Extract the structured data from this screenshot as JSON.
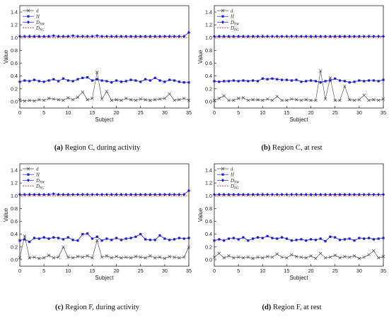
{
  "axis": {
    "ylabel": "Value",
    "xlabel": "Subject",
    "xticks": [
      "0",
      "5",
      "10",
      "15",
      "20",
      "25",
      "30",
      "35"
    ],
    "yticks": [
      "0.0",
      "0.2",
      "0.4",
      "0.6",
      "0.8",
      "1.0",
      "1.2",
      "1.4"
    ]
  },
  "legend": [
    {
      "label": "d",
      "color": "#444444",
      "marker": "x"
    },
    {
      "label": "H",
      "color": "#1a1adc",
      "marker": "square"
    },
    {
      "label": "D_NW",
      "sub": "NW",
      "color": "#1a1adc",
      "marker": "diamond"
    },
    {
      "label": "D_NG",
      "sub": "NG",
      "color": "#e8302e",
      "marker": "dash"
    }
  ],
  "colors": {
    "d": "#444444",
    "H": "#1a1adc",
    "D_NW": "#1a1adc",
    "D_NG": "#e8302e"
  },
  "chart_data": [
    {
      "type": "line",
      "caption_id": "(a)",
      "caption_text": "Region C, during activity",
      "xlabel": "Subject",
      "ylabel": "Value",
      "xlim": [
        0,
        35
      ],
      "ylim": [
        -0.1,
        1.5
      ],
      "x": [
        0,
        1,
        2,
        3,
        4,
        5,
        6,
        7,
        8,
        9,
        10,
        11,
        12,
        13,
        14,
        15,
        16,
        17,
        18,
        19,
        20,
        21,
        22,
        23,
        24,
        25,
        26,
        27,
        28,
        29,
        30,
        31,
        32,
        33,
        34,
        35
      ],
      "series": [
        {
          "name": "d",
          "values": [
            0.03,
            0.01,
            0.02,
            0.01,
            0.03,
            0.02,
            0.05,
            0.04,
            0.03,
            0.02,
            0.06,
            0.03,
            0.07,
            0.15,
            0.03,
            0.05,
            0.46,
            0.04,
            0.16,
            0.02,
            0.03,
            0.02,
            0.05,
            0.03,
            0.02,
            0.04,
            0.03,
            0.02,
            0.03,
            0.04,
            0.05,
            0.12,
            0.02,
            0.03,
            0.05,
            0.02
          ]
        },
        {
          "name": "H",
          "values": [
            0.31,
            0.33,
            0.32,
            0.34,
            0.32,
            0.31,
            0.33,
            0.35,
            0.32,
            0.36,
            0.33,
            0.32,
            0.35,
            0.37,
            0.38,
            0.33,
            0.35,
            0.33,
            0.32,
            0.3,
            0.33,
            0.31,
            0.32,
            0.34,
            0.33,
            0.31,
            0.35,
            0.33,
            0.37,
            0.33,
            0.31,
            0.34,
            0.33,
            0.31,
            0.3,
            0.3
          ]
        },
        {
          "name": "D_NW",
          "values": [
            1.02,
            1.02,
            1.02,
            1.02,
            1.02,
            1.02,
            1.02,
            1.03,
            1.02,
            1.02,
            1.02,
            1.03,
            1.02,
            1.02,
            1.02,
            1.02,
            1.03,
            1.02,
            1.02,
            1.02,
            1.02,
            1.02,
            1.02,
            1.02,
            1.02,
            1.02,
            1.02,
            1.02,
            1.02,
            1.02,
            1.02,
            1.02,
            1.02,
            1.02,
            1.02,
            1.08
          ]
        },
        {
          "name": "D_NG",
          "values": [
            1.0,
            1.0,
            1.0,
            1.0,
            1.0,
            1.0,
            1.0,
            1.0,
            1.0,
            1.0,
            1.0,
            1.0,
            1.0,
            1.0,
            1.0,
            1.0,
            1.0,
            1.0,
            1.0,
            1.0,
            1.0,
            1.0,
            1.0,
            1.0,
            1.0,
            1.0,
            1.0,
            1.0,
            1.0,
            1.0,
            1.0,
            1.0,
            1.0,
            1.0,
            1.0,
            1.0
          ]
        }
      ]
    },
    {
      "type": "line",
      "caption_id": "(b)",
      "caption_text": "Region C, at rest",
      "xlabel": "Subject",
      "ylabel": "Value",
      "xlim": [
        0,
        35
      ],
      "ylim": [
        -0.1,
        1.5
      ],
      "x": [
        0,
        1,
        2,
        3,
        4,
        5,
        6,
        7,
        8,
        9,
        10,
        11,
        12,
        13,
        14,
        15,
        16,
        17,
        18,
        19,
        20,
        21,
        22,
        23,
        24,
        25,
        26,
        27,
        28,
        29,
        30,
        31,
        32,
        33,
        34,
        35
      ],
      "series": [
        {
          "name": "d",
          "values": [
            0.02,
            0.05,
            0.09,
            0.02,
            0.02,
            0.05,
            0.06,
            0.02,
            0.03,
            0.03,
            0.02,
            0.04,
            0.02,
            0.08,
            0.02,
            0.02,
            0.04,
            0.03,
            0.02,
            0.03,
            0.02,
            0.02,
            0.48,
            0.04,
            0.37,
            0.02,
            0.02,
            0.24,
            0.03,
            0.02,
            0.03,
            0.1,
            0.02,
            0.03,
            0.02,
            0.04
          ]
        },
        {
          "name": "H",
          "values": [
            0.32,
            0.31,
            0.32,
            0.32,
            0.33,
            0.32,
            0.33,
            0.32,
            0.33,
            0.32,
            0.36,
            0.35,
            0.36,
            0.35,
            0.34,
            0.34,
            0.33,
            0.34,
            0.31,
            0.32,
            0.33,
            0.32,
            0.3,
            0.32,
            0.33,
            0.36,
            0.33,
            0.32,
            0.3,
            0.31,
            0.33,
            0.32,
            0.33,
            0.33,
            0.32,
            0.34
          ]
        },
        {
          "name": "D_NW",
          "values": [
            1.02,
            1.02,
            1.02,
            1.02,
            1.02,
            1.02,
            1.02,
            1.02,
            1.02,
            1.02,
            1.02,
            1.02,
            1.02,
            1.02,
            1.02,
            1.02,
            1.02,
            1.02,
            1.02,
            1.02,
            1.02,
            1.02,
            1.02,
            1.02,
            1.02,
            1.02,
            1.02,
            1.02,
            1.02,
            1.02,
            1.02,
            1.02,
            1.02,
            1.02,
            1.02,
            1.02
          ]
        },
        {
          "name": "D_NG",
          "values": [
            1.0,
            1.0,
            1.0,
            1.0,
            1.0,
            1.0,
            1.0,
            1.0,
            1.0,
            1.0,
            1.0,
            1.0,
            1.0,
            1.0,
            1.0,
            1.0,
            1.0,
            1.0,
            1.0,
            1.0,
            1.0,
            1.0,
            1.0,
            1.0,
            1.0,
            1.0,
            1.0,
            1.0,
            1.0,
            1.0,
            1.0,
            1.0,
            1.0,
            1.0,
            1.0,
            1.0
          ]
        }
      ]
    },
    {
      "type": "line",
      "caption_id": "(c)",
      "caption_text": "Region F, during activity",
      "xlabel": "Subject",
      "ylabel": "Value",
      "xlim": [
        0,
        35
      ],
      "ylim": [
        -0.1,
        1.5
      ],
      "x": [
        0,
        1,
        2,
        3,
        4,
        5,
        6,
        7,
        8,
        9,
        10,
        11,
        12,
        13,
        14,
        15,
        16,
        17,
        18,
        19,
        20,
        21,
        22,
        23,
        24,
        25,
        26,
        27,
        28,
        29,
        30,
        31,
        32,
        33,
        34,
        35
      ],
      "series": [
        {
          "name": "d",
          "values": [
            0.03,
            0.37,
            0.03,
            0.04,
            0.02,
            0.03,
            0.07,
            0.03,
            0.04,
            0.2,
            0.04,
            0.03,
            0.05,
            0.04,
            0.06,
            0.03,
            0.3,
            0.04,
            0.06,
            0.03,
            0.05,
            0.03,
            0.04,
            0.03,
            0.05,
            0.04,
            0.03,
            0.06,
            0.03,
            0.04,
            0.02,
            0.05,
            0.04,
            0.03,
            0.04,
            0.2
          ]
        },
        {
          "name": "H",
          "values": [
            0.3,
            0.32,
            0.28,
            0.34,
            0.33,
            0.35,
            0.33,
            0.35,
            0.34,
            0.32,
            0.35,
            0.31,
            0.3,
            0.4,
            0.41,
            0.33,
            0.36,
            0.3,
            0.33,
            0.31,
            0.34,
            0.31,
            0.33,
            0.34,
            0.36,
            0.4,
            0.32,
            0.31,
            0.31,
            0.38,
            0.33,
            0.31,
            0.32,
            0.34,
            0.33,
            0.34
          ]
        },
        {
          "name": "D_NW",
          "values": [
            1.02,
            1.02,
            1.02,
            1.02,
            1.02,
            1.02,
            1.02,
            1.03,
            1.02,
            1.02,
            1.02,
            1.02,
            1.02,
            1.02,
            1.02,
            1.02,
            1.02,
            1.02,
            1.02,
            1.02,
            1.02,
            1.02,
            1.02,
            1.02,
            1.02,
            1.02,
            1.02,
            1.02,
            1.02,
            1.02,
            1.02,
            1.02,
            1.02,
            1.02,
            1.02,
            1.08
          ]
        },
        {
          "name": "D_NG",
          "values": [
            1.0,
            1.0,
            1.0,
            1.0,
            1.0,
            1.0,
            1.0,
            1.0,
            1.0,
            1.0,
            1.0,
            1.0,
            1.0,
            1.0,
            1.0,
            1.0,
            1.0,
            1.0,
            1.0,
            1.0,
            1.0,
            1.0,
            1.0,
            1.0,
            1.0,
            1.0,
            1.0,
            1.0,
            1.0,
            1.0,
            1.0,
            1.0,
            1.0,
            1.0,
            1.0,
            1.0
          ]
        }
      ]
    },
    {
      "type": "line",
      "caption_id": "(d)",
      "caption_text": "Region F, at rest",
      "xlabel": "Subject",
      "ylabel": "Value",
      "xlim": [
        0,
        35
      ],
      "ylim": [
        -0.1,
        1.5
      ],
      "x": [
        0,
        1,
        2,
        3,
        4,
        5,
        6,
        7,
        8,
        9,
        10,
        11,
        12,
        13,
        14,
        15,
        16,
        17,
        18,
        19,
        20,
        21,
        22,
        23,
        24,
        25,
        26,
        27,
        28,
        29,
        30,
        31,
        32,
        33,
        34,
        35
      ],
      "series": [
        {
          "name": "d",
          "values": [
            0.04,
            0.1,
            0.03,
            0.06,
            0.03,
            0.04,
            0.03,
            0.04,
            0.02,
            0.04,
            0.03,
            0.05,
            0.04,
            0.09,
            0.04,
            0.03,
            0.08,
            0.05,
            0.04,
            0.03,
            0.06,
            0.02,
            0.1,
            0.03,
            0.04,
            0.07,
            0.03,
            0.05,
            0.04,
            0.06,
            0.02,
            0.04,
            0.08,
            0.14,
            0.03,
            0.05
          ]
        },
        {
          "name": "H",
          "values": [
            0.3,
            0.32,
            0.3,
            0.33,
            0.34,
            0.32,
            0.35,
            0.3,
            0.33,
            0.35,
            0.34,
            0.37,
            0.34,
            0.33,
            0.35,
            0.33,
            0.3,
            0.31,
            0.32,
            0.3,
            0.32,
            0.31,
            0.33,
            0.29,
            0.36,
            0.35,
            0.31,
            0.32,
            0.33,
            0.3,
            0.34,
            0.33,
            0.34,
            0.32,
            0.33,
            0.34
          ]
        },
        {
          "name": "D_NW",
          "values": [
            1.02,
            1.02,
            1.02,
            1.02,
            1.02,
            1.02,
            1.02,
            1.02,
            1.02,
            1.02,
            1.02,
            1.02,
            1.02,
            1.02,
            1.02,
            1.02,
            1.02,
            1.02,
            1.02,
            1.02,
            1.02,
            1.02,
            1.02,
            1.02,
            1.02,
            1.02,
            1.02,
            1.02,
            1.02,
            1.02,
            1.02,
            1.02,
            1.02,
            1.02,
            1.02,
            1.02
          ]
        },
        {
          "name": "D_NG",
          "values": [
            1.0,
            1.0,
            1.0,
            1.0,
            1.0,
            1.0,
            1.0,
            1.0,
            1.0,
            1.0,
            1.0,
            1.0,
            1.0,
            1.0,
            1.0,
            1.0,
            1.0,
            1.0,
            1.0,
            1.0,
            1.0,
            1.0,
            1.0,
            1.0,
            1.0,
            1.0,
            1.0,
            1.0,
            1.0,
            1.0,
            1.0,
            1.0,
            1.0,
            1.0,
            1.0,
            1.0
          ]
        }
      ]
    }
  ]
}
